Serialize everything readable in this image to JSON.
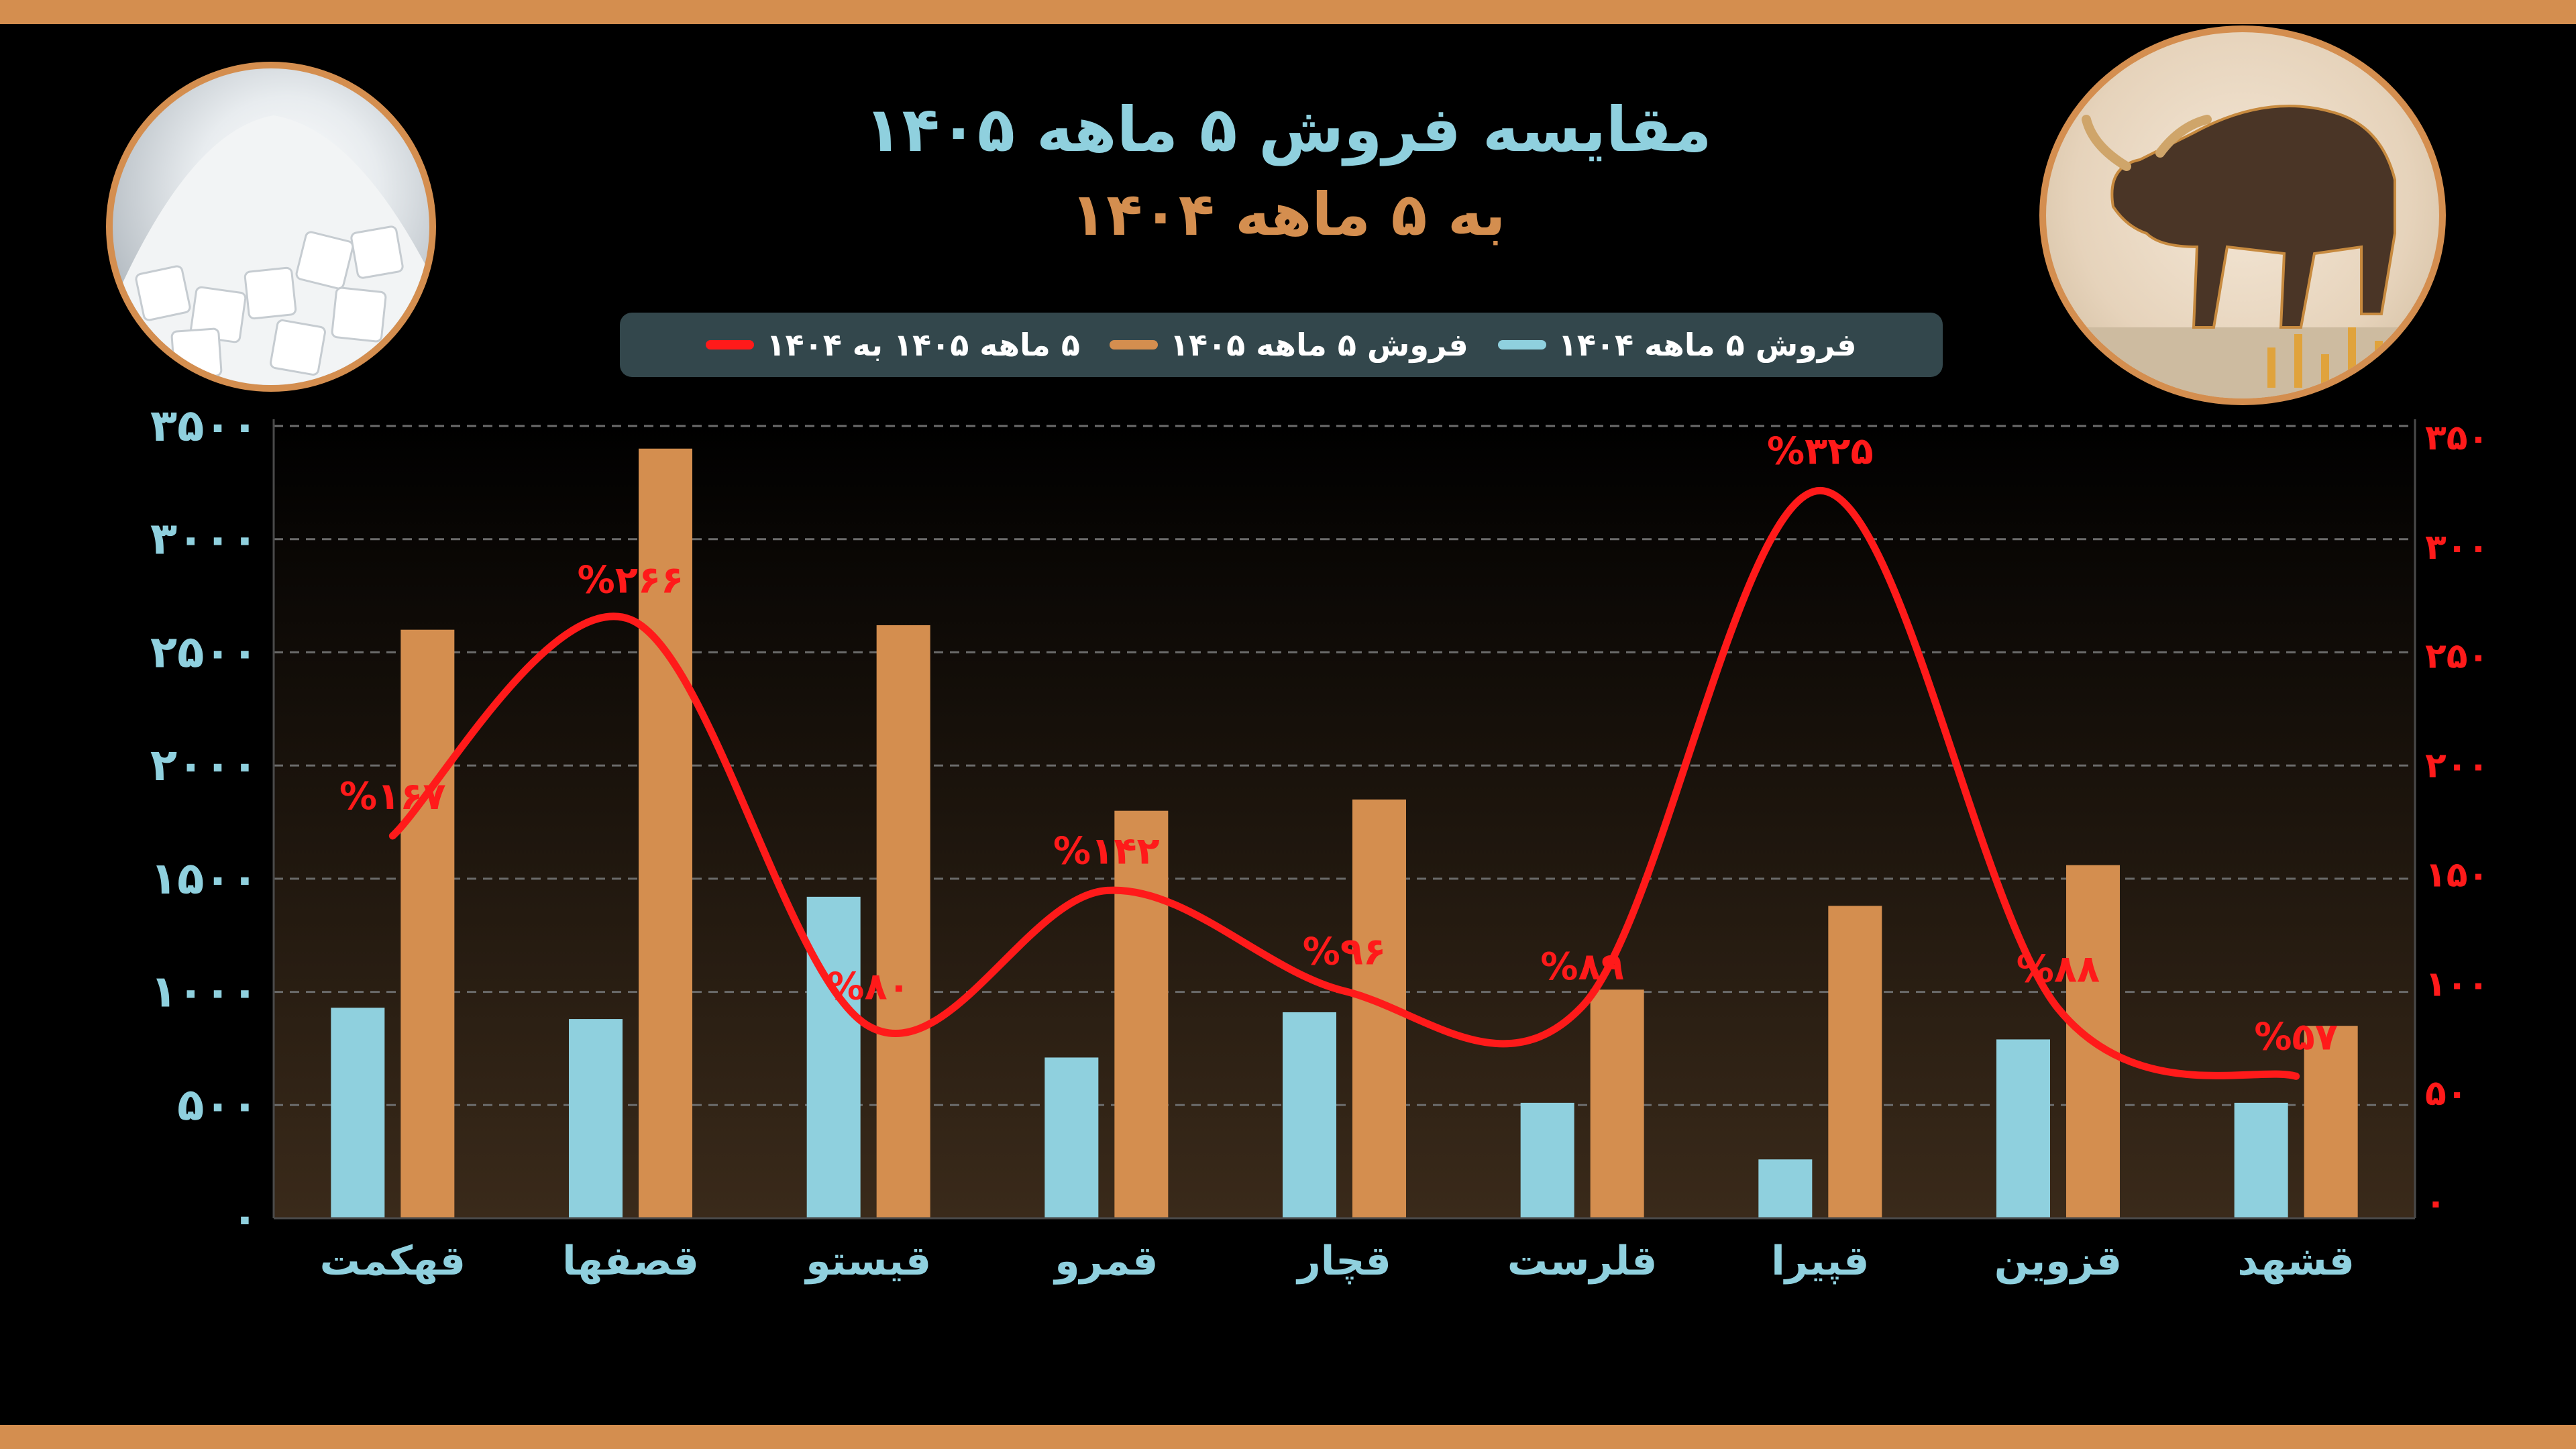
{
  "title": {
    "line1": "مقایسه فروش ۵ ماهه ۱۴۰۵",
    "line2": "به ۵ ماهه ۱۴۰۴"
  },
  "legend": [
    {
      "label": "۵ ماهه ۱۴۰۵ به ۱۴۰۴",
      "color": "#ff1a1a"
    },
    {
      "label": "فروش ۵ ماهه ۱۴۰۵",
      "color": "#d48e4f"
    },
    {
      "label": "فروش ۵ ماهه ۱۴۰۴",
      "color": "#8fd0de"
    }
  ],
  "chart_data": {
    "type": "bar",
    "categories": [
      "قهکمت",
      "قصفها",
      "قیستو",
      "قمرو",
      "قچار",
      "قلرست",
      "قپیرا",
      "قزوین",
      "قشهد"
    ],
    "series": [
      {
        "name": "فروش ۵ ماهه ۱۴۰۴",
        "type": "bar",
        "axis": "left",
        "color": "#8fd0de",
        "values": [
          930,
          880,
          1420,
          710,
          910,
          510,
          260,
          790,
          510
        ]
      },
      {
        "name": "فروش ۵ ماهه ۱۴۰۵",
        "type": "bar",
        "axis": "left",
        "color": "#d48e4f",
        "values": [
          2600,
          3400,
          2620,
          1800,
          1850,
          1010,
          1380,
          1560,
          850
        ]
      },
      {
        "name": "۵ ماهه ۱۴۰۵ به ۱۴۰۴",
        "type": "line",
        "axis": "right",
        "color": "#ff1a1a",
        "values": [
          167,
          266,
          80,
          142,
          96,
          89,
          325,
          88,
          57
        ],
        "data_labels": [
          "%۱۶۷",
          "%۲۶۶",
          "%۸۰",
          "%۱۴۲",
          "%۹۶",
          "%۸۹",
          "%۳۲۵",
          "%۸۸",
          "%۵۷"
        ]
      }
    ],
    "y_left": {
      "ylim": [
        0,
        3500
      ],
      "ticks": [
        0,
        500,
        1000,
        1500,
        2000,
        2500,
        3000,
        3500
      ],
      "tick_labels": [
        "۰",
        "۵۰۰",
        "۱۰۰۰",
        "۱۵۰۰",
        "۲۰۰۰",
        "۲۵۰۰",
        "۳۰۰۰",
        "۳۵۰۰"
      ],
      "color": "#8fd0de"
    },
    "y_right": {
      "ylim": [
        0,
        350
      ],
      "ticks": [
        0,
        50,
        100,
        150,
        200,
        250,
        300,
        350
      ],
      "tick_labels": [
        "۰",
        "۵۰",
        "۱۰۰",
        "۱۵۰",
        "۲۰۰",
        "۲۵۰",
        "۳۰۰",
        "۳۵۰"
      ],
      "color": "#ff1a1a"
    },
    "grid": true,
    "legend_position": "top"
  }
}
